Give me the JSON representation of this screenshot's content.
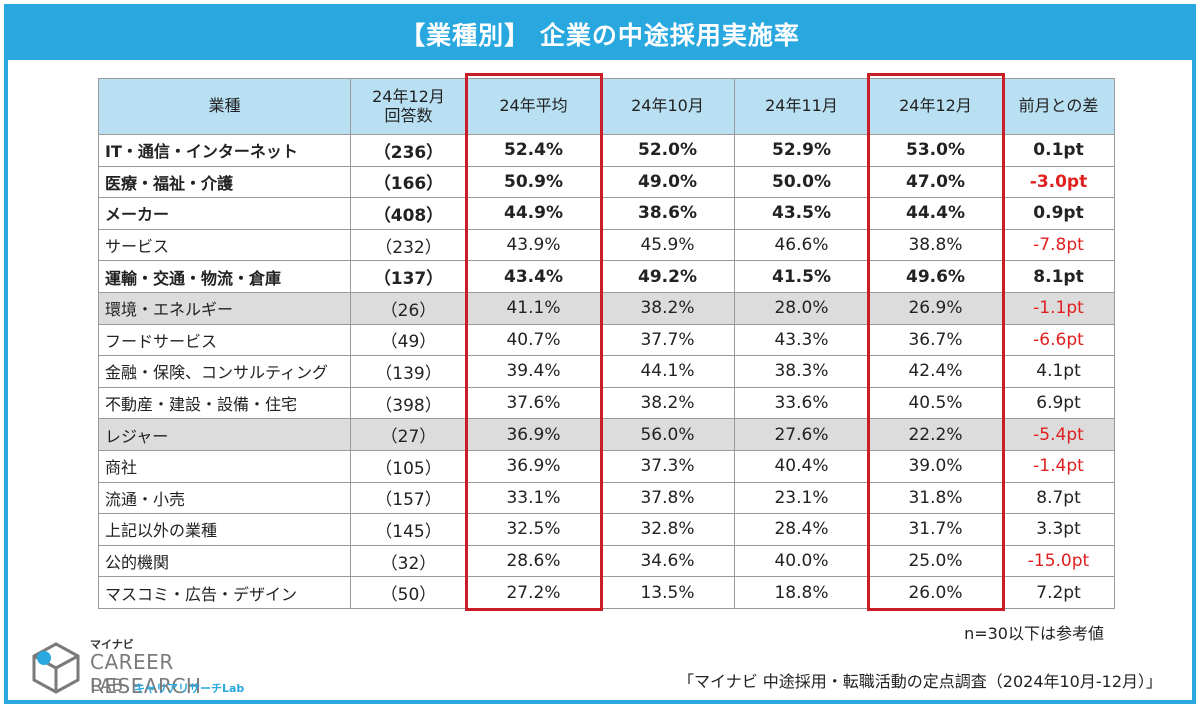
{
  "title": "【業種別】 企業の中途採用実施率",
  "chart_data": {
    "type": "table",
    "columns": [
      "業種",
      "24年12月\n回答数",
      "24年平均",
      "24年10月",
      "24年11月",
      "24年12月",
      "前月との差"
    ],
    "rows": [
      {
        "industry": "IT・通信・インターネット",
        "count": "（236）",
        "avg": "52.4%",
        "oct": "52.0%",
        "nov": "52.9%",
        "dec": "53.0%",
        "diff": "0.1pt",
        "neg": false,
        "bold": true,
        "gray": false
      },
      {
        "industry": "医療・福祉・介護",
        "count": "（166）",
        "avg": "50.9%",
        "oct": "49.0%",
        "nov": "50.0%",
        "dec": "47.0%",
        "diff": "-3.0pt",
        "neg": true,
        "bold": true,
        "gray": false
      },
      {
        "industry": "メーカー",
        "count": "（408）",
        "avg": "44.9%",
        "oct": "38.6%",
        "nov": "43.5%",
        "dec": "44.4%",
        "diff": "0.9pt",
        "neg": false,
        "bold": true,
        "gray": false
      },
      {
        "industry": "サービス",
        "count": "（232）",
        "avg": "43.9%",
        "oct": "45.9%",
        "nov": "46.6%",
        "dec": "38.8%",
        "diff": "-7.8pt",
        "neg": true,
        "bold": false,
        "gray": false
      },
      {
        "industry": "運輸・交通・物流・倉庫",
        "count": "（137）",
        "avg": "43.4%",
        "oct": "49.2%",
        "nov": "41.5%",
        "dec": "49.6%",
        "diff": "8.1pt",
        "neg": false,
        "bold": true,
        "gray": false
      },
      {
        "industry": "環境・エネルギー",
        "count": "（26）",
        "avg": "41.1%",
        "oct": "38.2%",
        "nov": "28.0%",
        "dec": "26.9%",
        "diff": "-1.1pt",
        "neg": true,
        "bold": false,
        "gray": true
      },
      {
        "industry": "フードサービス",
        "count": "（49）",
        "avg": "40.7%",
        "oct": "37.7%",
        "nov": "43.3%",
        "dec": "36.7%",
        "diff": "-6.6pt",
        "neg": true,
        "bold": false,
        "gray": false
      },
      {
        "industry": "金融・保険、コンサルティング",
        "count": "（139）",
        "avg": "39.4%",
        "oct": "44.1%",
        "nov": "38.3%",
        "dec": "42.4%",
        "diff": "4.1pt",
        "neg": false,
        "bold": false,
        "gray": false
      },
      {
        "industry": "不動産・建設・設備・住宅",
        "count": "（398）",
        "avg": "37.6%",
        "oct": "38.2%",
        "nov": "33.6%",
        "dec": "40.5%",
        "diff": "6.9pt",
        "neg": false,
        "bold": false,
        "gray": false
      },
      {
        "industry": "レジャー",
        "count": "（27）",
        "avg": "36.9%",
        "oct": "56.0%",
        "nov": "27.6%",
        "dec": "22.2%",
        "diff": "-5.4pt",
        "neg": true,
        "bold": false,
        "gray": true
      },
      {
        "industry": "商社",
        "count": "（105）",
        "avg": "36.9%",
        "oct": "37.3%",
        "nov": "40.4%",
        "dec": "39.0%",
        "diff": "-1.4pt",
        "neg": true,
        "bold": false,
        "gray": false
      },
      {
        "industry": "流通・小売",
        "count": "（157）",
        "avg": "33.1%",
        "oct": "37.8%",
        "nov": "23.1%",
        "dec": "31.8%",
        "diff": "8.7pt",
        "neg": false,
        "bold": false,
        "gray": false
      },
      {
        "industry": "上記以外の業種",
        "count": "（145）",
        "avg": "32.5%",
        "oct": "32.8%",
        "nov": "28.4%",
        "dec": "31.7%",
        "diff": "3.3pt",
        "neg": false,
        "bold": false,
        "gray": false
      },
      {
        "industry": "公的機関",
        "count": "（32）",
        "avg": "28.6%",
        "oct": "34.6%",
        "nov": "40.0%",
        "dec": "25.0%",
        "diff": "-15.0pt",
        "neg": true,
        "bold": false,
        "gray": false
      },
      {
        "industry": "マスコミ・広告・デザイン",
        "count": "（50）",
        "avg": "27.2%",
        "oct": "13.5%",
        "nov": "18.8%",
        "dec": "26.0%",
        "diff": "7.2pt",
        "neg": false,
        "bold": false,
        "gray": false
      }
    ],
    "highlighted_columns": [
      "24年平均",
      "24年12月"
    ]
  },
  "note": "n=30以下は参考値",
  "source": "「マイナビ 中途採用・転職活動の定点調査（2024年10月-12月）」",
  "logo": {
    "top": "マイナビ",
    "main": "CAREER RESEARCH",
    "bottom": "LAB",
    "sub": "キャリアリサーチLab"
  },
  "colors": {
    "accent": "#29a8e0",
    "header_bg": "#b8dff2",
    "highlight_border": "#c81e28",
    "negative": "#e02020",
    "gray_row": "#dcdcdc"
  }
}
